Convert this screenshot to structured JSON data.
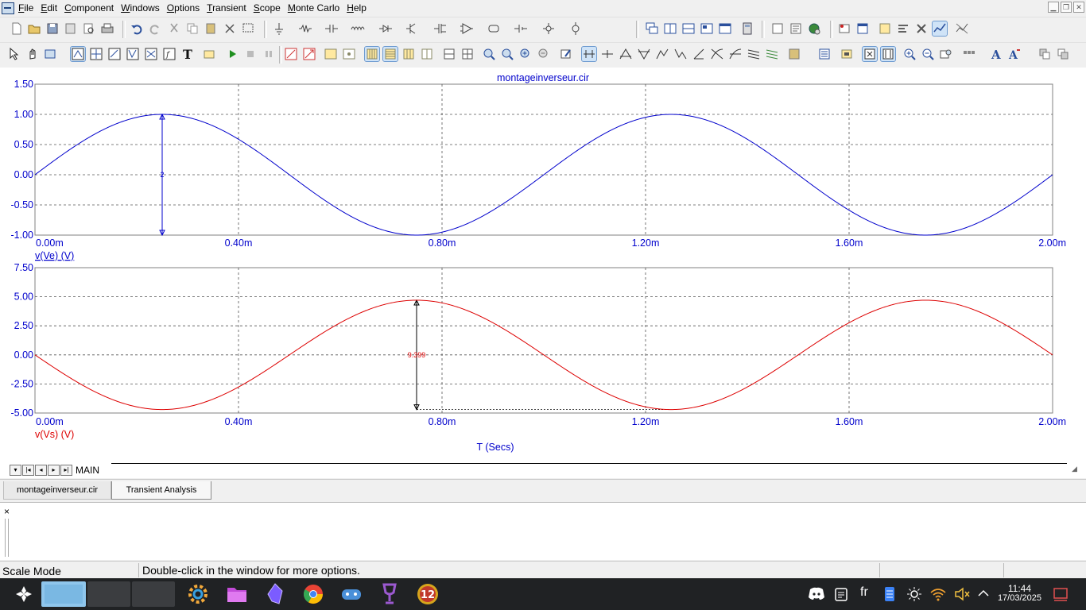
{
  "menu": {
    "items": [
      "File",
      "Edit",
      "Component",
      "Windows",
      "Options",
      "Transient",
      "Scope",
      "Monte Carlo",
      "Help"
    ]
  },
  "colors": {
    "upper_trace": "#0000cc",
    "lower_trace": "#dd0000",
    "axis_text": "#0000cc",
    "grid": "#555555"
  },
  "chart_data": [
    {
      "type": "line",
      "title": "montageinverseur.cir",
      "xlabel": "",
      "ylabel": "v(Ve) (V)",
      "xlim": [
        0,
        0.002
      ],
      "ylim": [
        -1.0,
        1.5
      ],
      "xticks": [
        "0.00m",
        "0.40m",
        "0.80m",
        "1.20m",
        "1.60m",
        "2.00m"
      ],
      "yticks": [
        "1.50",
        "1.00",
        "0.50",
        "0.00",
        "-0.50",
        "-1.00"
      ],
      "series": [
        {
          "name": "v(Ve) (V)",
          "amplitude": 1.0,
          "frequency_hz": 1000,
          "phase_sign": 1,
          "x": [
            0,
            0.00025,
            0.0005,
            0.00075,
            0.001,
            0.00125,
            0.0015,
            0.00175,
            0.002
          ],
          "y": [
            0,
            1.0,
            0,
            -1.0,
            0,
            1.0,
            0,
            -1.0,
            0
          ]
        }
      ],
      "cursor": {
        "x": 0.00025,
        "y_top": 1.0,
        "y_bottom": -1.0,
        "label": "2"
      },
      "grid": true
    },
    {
      "type": "line",
      "title": "",
      "xlabel": "T (Secs)",
      "ylabel": "v(Vs) (V)",
      "xlim": [
        0,
        0.002
      ],
      "ylim": [
        -5.0,
        7.5
      ],
      "xticks": [
        "0.00m",
        "0.40m",
        "0.80m",
        "1.20m",
        "1.60m",
        "2.00m"
      ],
      "yticks": [
        "7.50",
        "5.00",
        "2.50",
        "0.00",
        "-2.50",
        "-5.00"
      ],
      "series": [
        {
          "name": "v(Vs) (V)",
          "amplitude": 4.7,
          "frequency_hz": 1000,
          "phase_sign": -1,
          "x": [
            0,
            0.00025,
            0.0005,
            0.00075,
            0.001,
            0.00125,
            0.0015,
            0.00175,
            0.002
          ],
          "y": [
            0,
            -4.7,
            0,
            4.7,
            0,
            -4.7,
            0,
            4.7,
            0
          ]
        }
      ],
      "cursor": {
        "x": 0.00075,
        "y_top": 4.7,
        "y_bottom": -4.7,
        "label": "9.399"
      },
      "grid": true
    }
  ],
  "sheet": {
    "name": "MAIN"
  },
  "tabs": [
    {
      "label": "montageinverseur.cir"
    },
    {
      "label": "Transient Analysis"
    }
  ],
  "output": {
    "close_glyph": "×"
  },
  "status": {
    "mode": "Scale Mode",
    "hint": "Double-click in the window for more options."
  },
  "taskbar": {
    "language": "fr",
    "time": "11:44",
    "date": "17/03/2025",
    "badge": "12"
  }
}
